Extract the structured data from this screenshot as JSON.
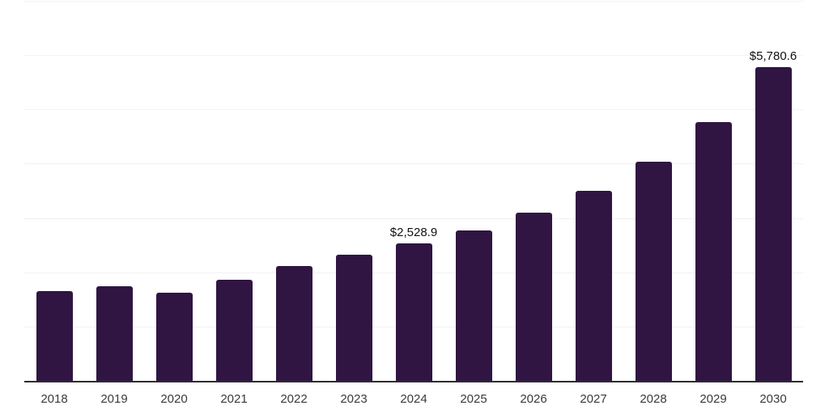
{
  "chart_data": {
    "type": "bar",
    "title": "",
    "xlabel": "",
    "ylabel": "",
    "categories": [
      "2018",
      "2019",
      "2020",
      "2021",
      "2022",
      "2023",
      "2024",
      "2025",
      "2026",
      "2027",
      "2028",
      "2029",
      "2030"
    ],
    "values": [
      1650,
      1750,
      1625,
      1865,
      2120,
      2330,
      2528.9,
      2770,
      3095,
      3505,
      4035,
      4770,
      5780.6
    ],
    "data_labels": {
      "2024": "$2,528.9",
      "2030": "$5,780.6"
    },
    "ylim": [
      0,
      7000
    ],
    "gridline_step": 1000,
    "grid": "horizontal-only",
    "legend": "none",
    "bar_color": "#301543",
    "gridline_color": "#f2f2f2",
    "axis_color": "#2d2d2d",
    "tick_label_color": "#3a3a3a",
    "data_label_color": "#111111"
  }
}
